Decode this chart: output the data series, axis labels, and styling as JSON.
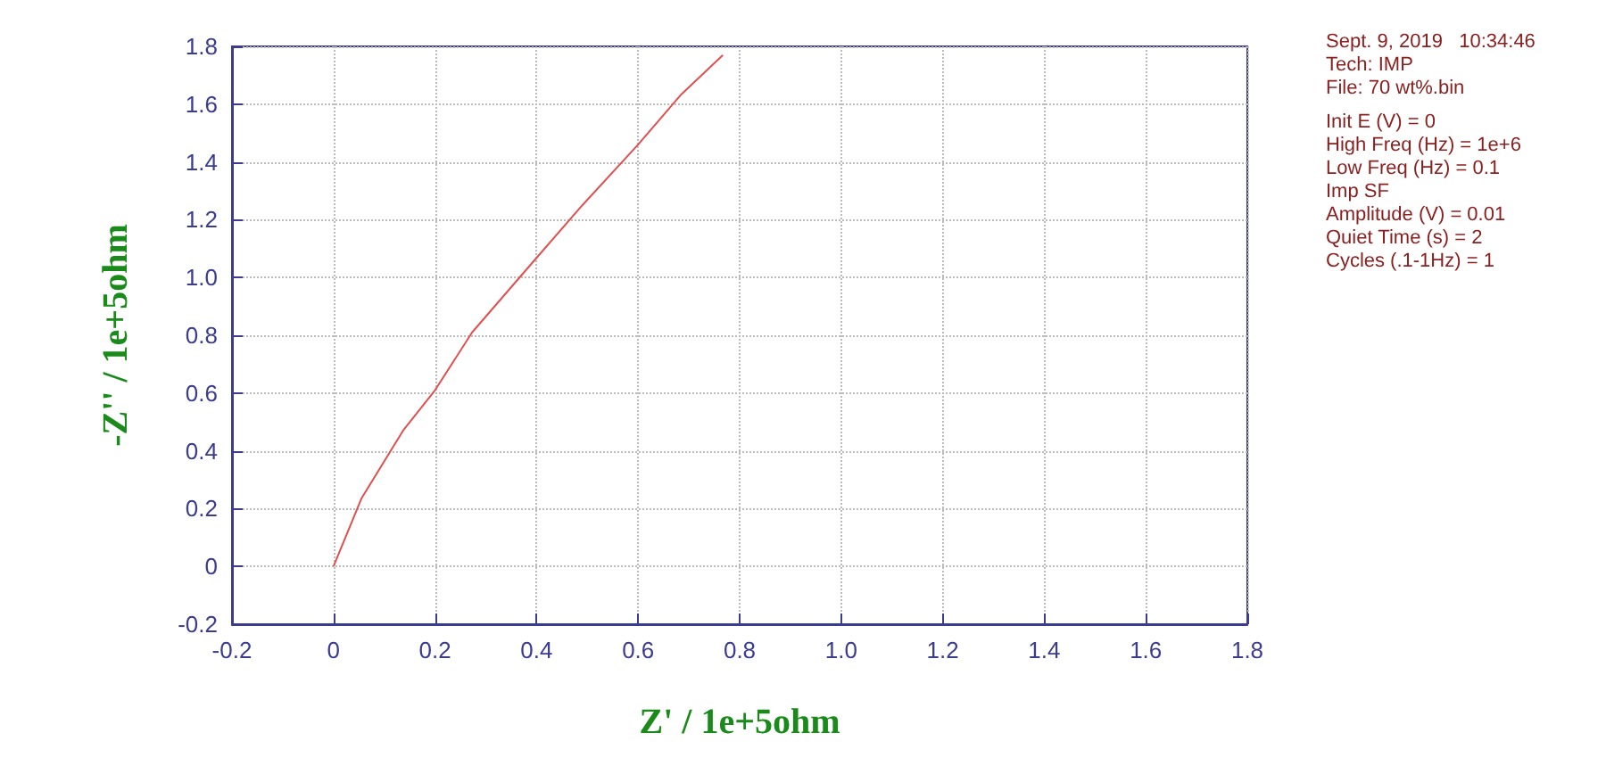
{
  "chart_data": {
    "type": "line",
    "xlabel": "Z' / 1e+5ohm",
    "ylabel": "-Z'' / 1e+5ohm",
    "x": [
      0,
      0.055,
      0.137,
      0.2,
      0.273,
      0.396,
      0.49,
      0.6,
      0.683,
      0.767
    ],
    "series": [
      {
        "color": "#e05050",
        "values": [
          0,
          0.235,
          0.47,
          0.61,
          0.81,
          1.06,
          1.25,
          1.46,
          1.63,
          1.77
        ]
      }
    ],
    "xlim": [
      -0.2,
      1.8
    ],
    "ylim": [
      -0.2,
      1.8
    ],
    "xticks": [
      -0.2,
      0,
      0.2,
      0.4,
      0.6,
      0.8,
      {
        "value": 1,
        "label": "1.0"
      },
      1.2,
      1.4,
      1.6,
      1.8
    ],
    "yticks": [
      -0.2,
      0,
      0.2,
      0.4,
      0.6,
      0.8,
      {
        "value": 1,
        "label": "1.0"
      },
      1.2,
      1.4,
      1.6,
      1.8
    ],
    "grid": true,
    "marker": "none",
    "line_style": "solid",
    "annotations": [
      "Sept. 9, 2019   10:34:46",
      "Tech: IMP",
      "File: 70 wt%.bin",
      "Init E (V) = 0",
      "High Freq (Hz) = 1e+6",
      "Low Freq (Hz) = 0.1",
      "Imp SF",
      "Amplitude (V) = 0.01",
      "Quiet Time (s) = 2",
      "Cycles (.1-1Hz) = 1"
    ]
  }
}
